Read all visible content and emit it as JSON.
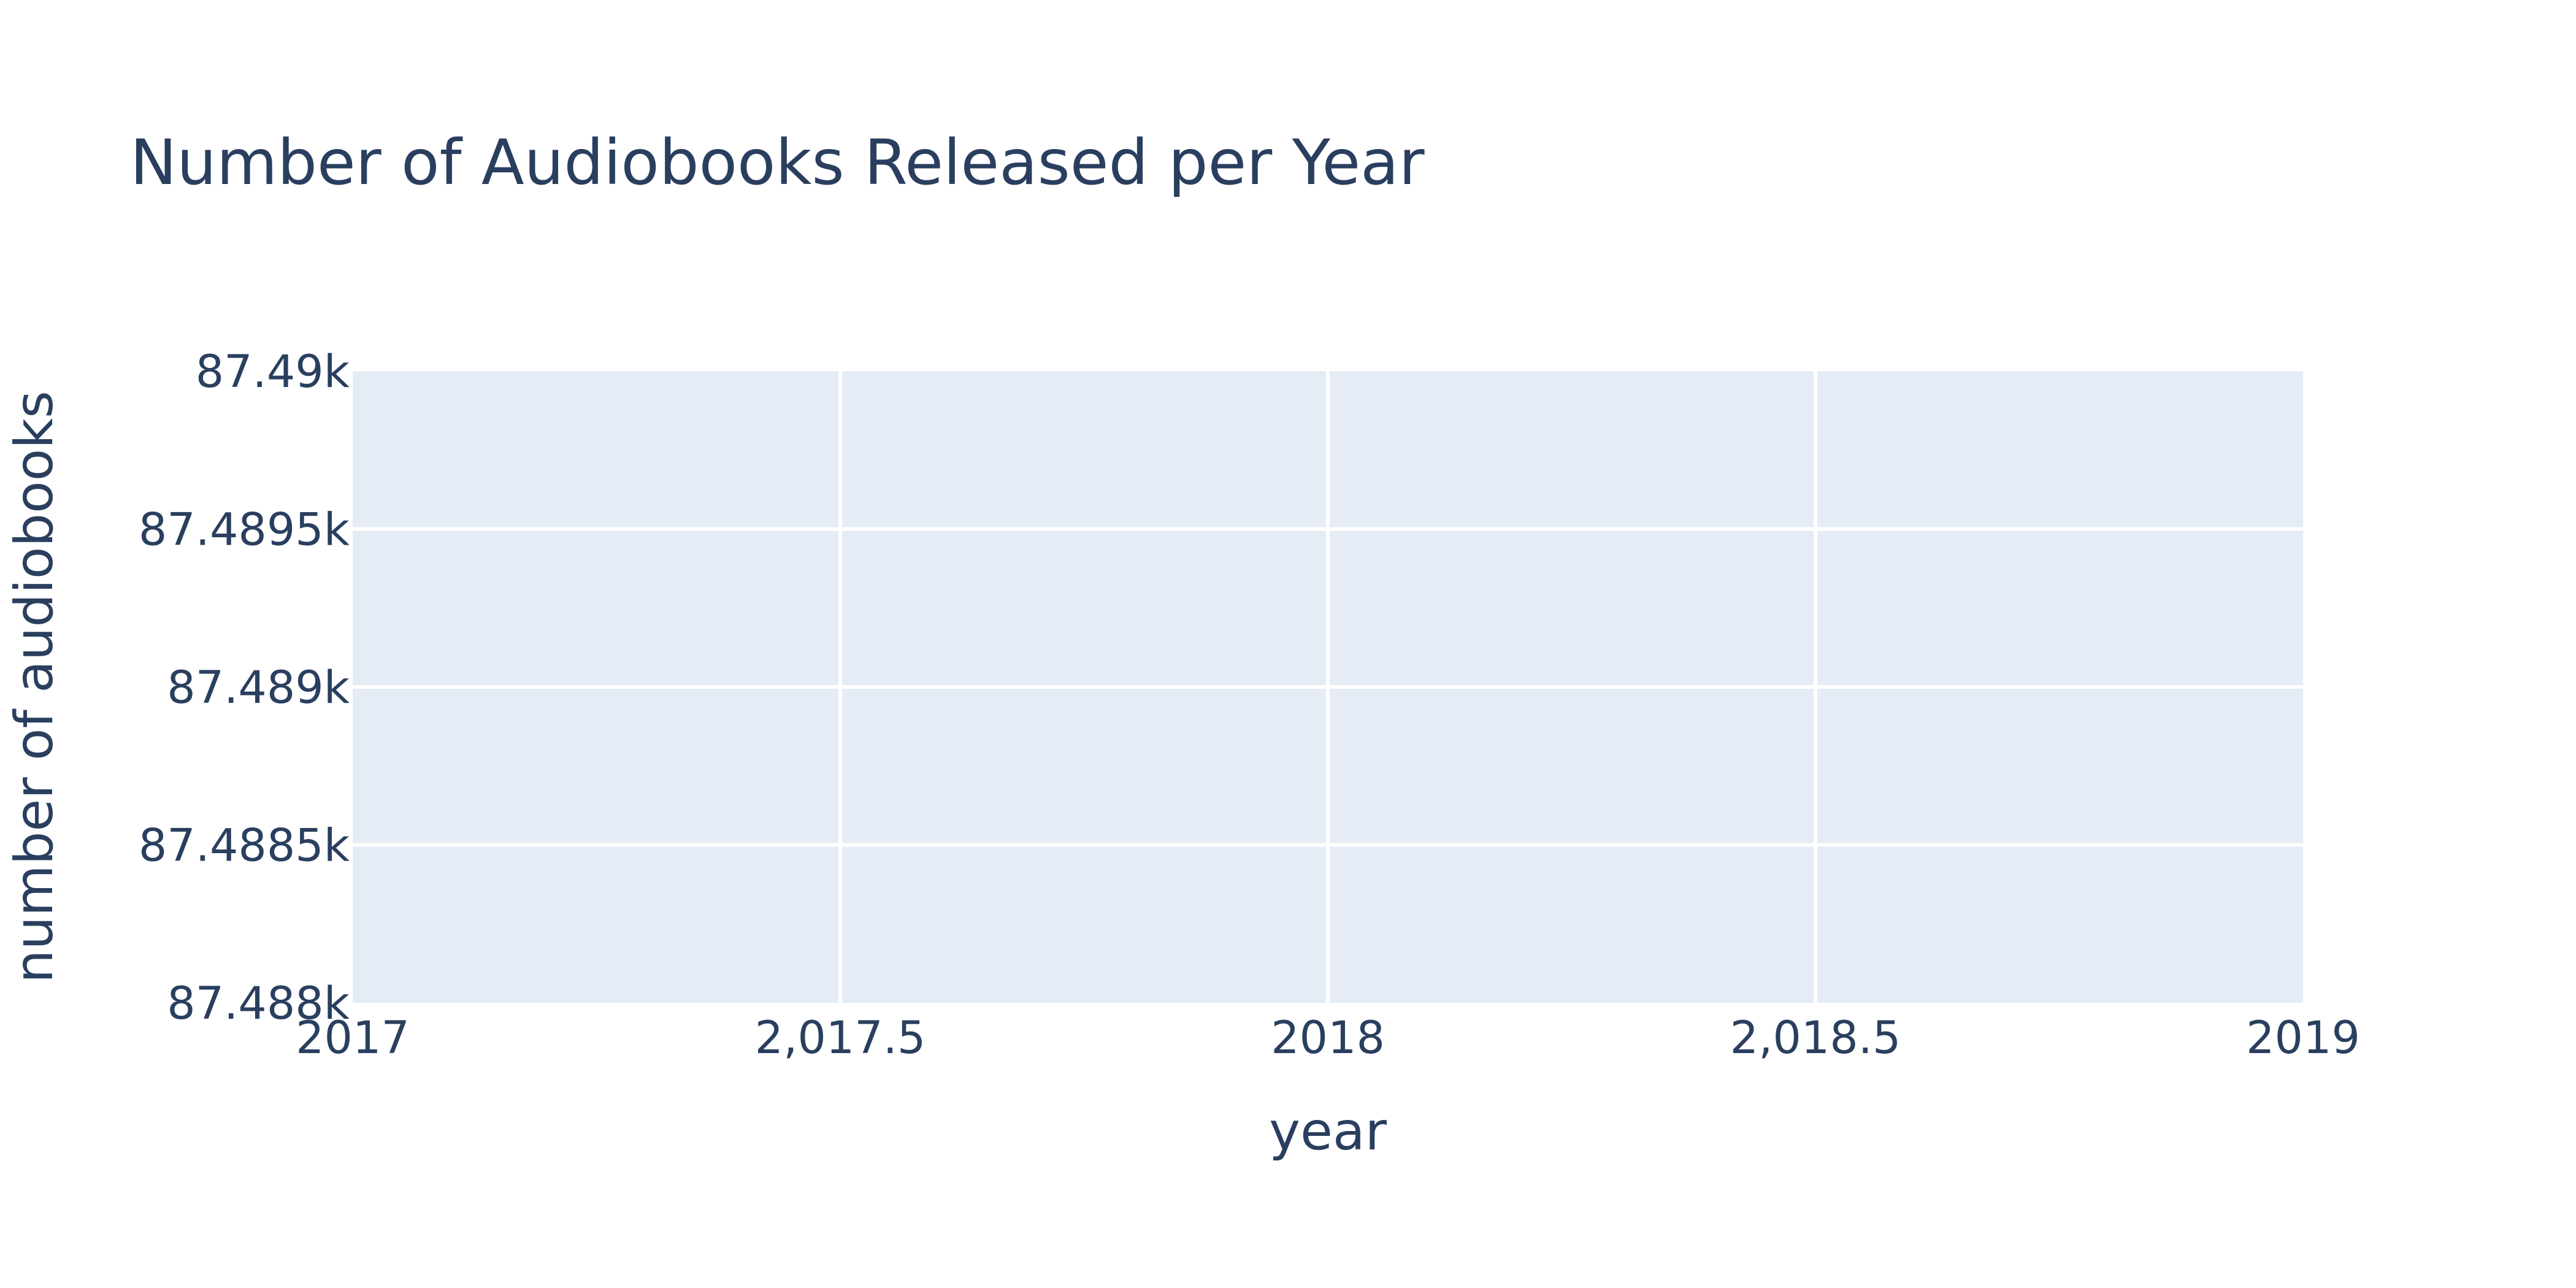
{
  "chart_data": {
    "type": "line",
    "title": "Number of Audiobooks Released per Year",
    "xlabel": "year",
    "ylabel": "number of audiobooks",
    "xlim": [
      2017,
      2019
    ],
    "ylim": [
      87488,
      87490
    ],
    "x_ticks": [
      {
        "value": 2017,
        "label": "2017"
      },
      {
        "value": 2017.5,
        "label": "2,017.5"
      },
      {
        "value": 2018,
        "label": "2018"
      },
      {
        "value": 2018.5,
        "label": "2,018.5"
      },
      {
        "value": 2019,
        "label": "2019"
      }
    ],
    "y_ticks": [
      {
        "value": 87488,
        "label": "87.488k"
      },
      {
        "value": 87488.5,
        "label": "87.4885k"
      },
      {
        "value": 87489,
        "label": "87.489k"
      },
      {
        "value": 87489.5,
        "label": "87.4895k"
      },
      {
        "value": 87490,
        "label": "87.49k"
      }
    ],
    "series": [],
    "grid": true,
    "colors": {
      "plot_background": "#e5ecf6",
      "gridline": "#ffffff",
      "text": "#2a3f5f"
    }
  }
}
